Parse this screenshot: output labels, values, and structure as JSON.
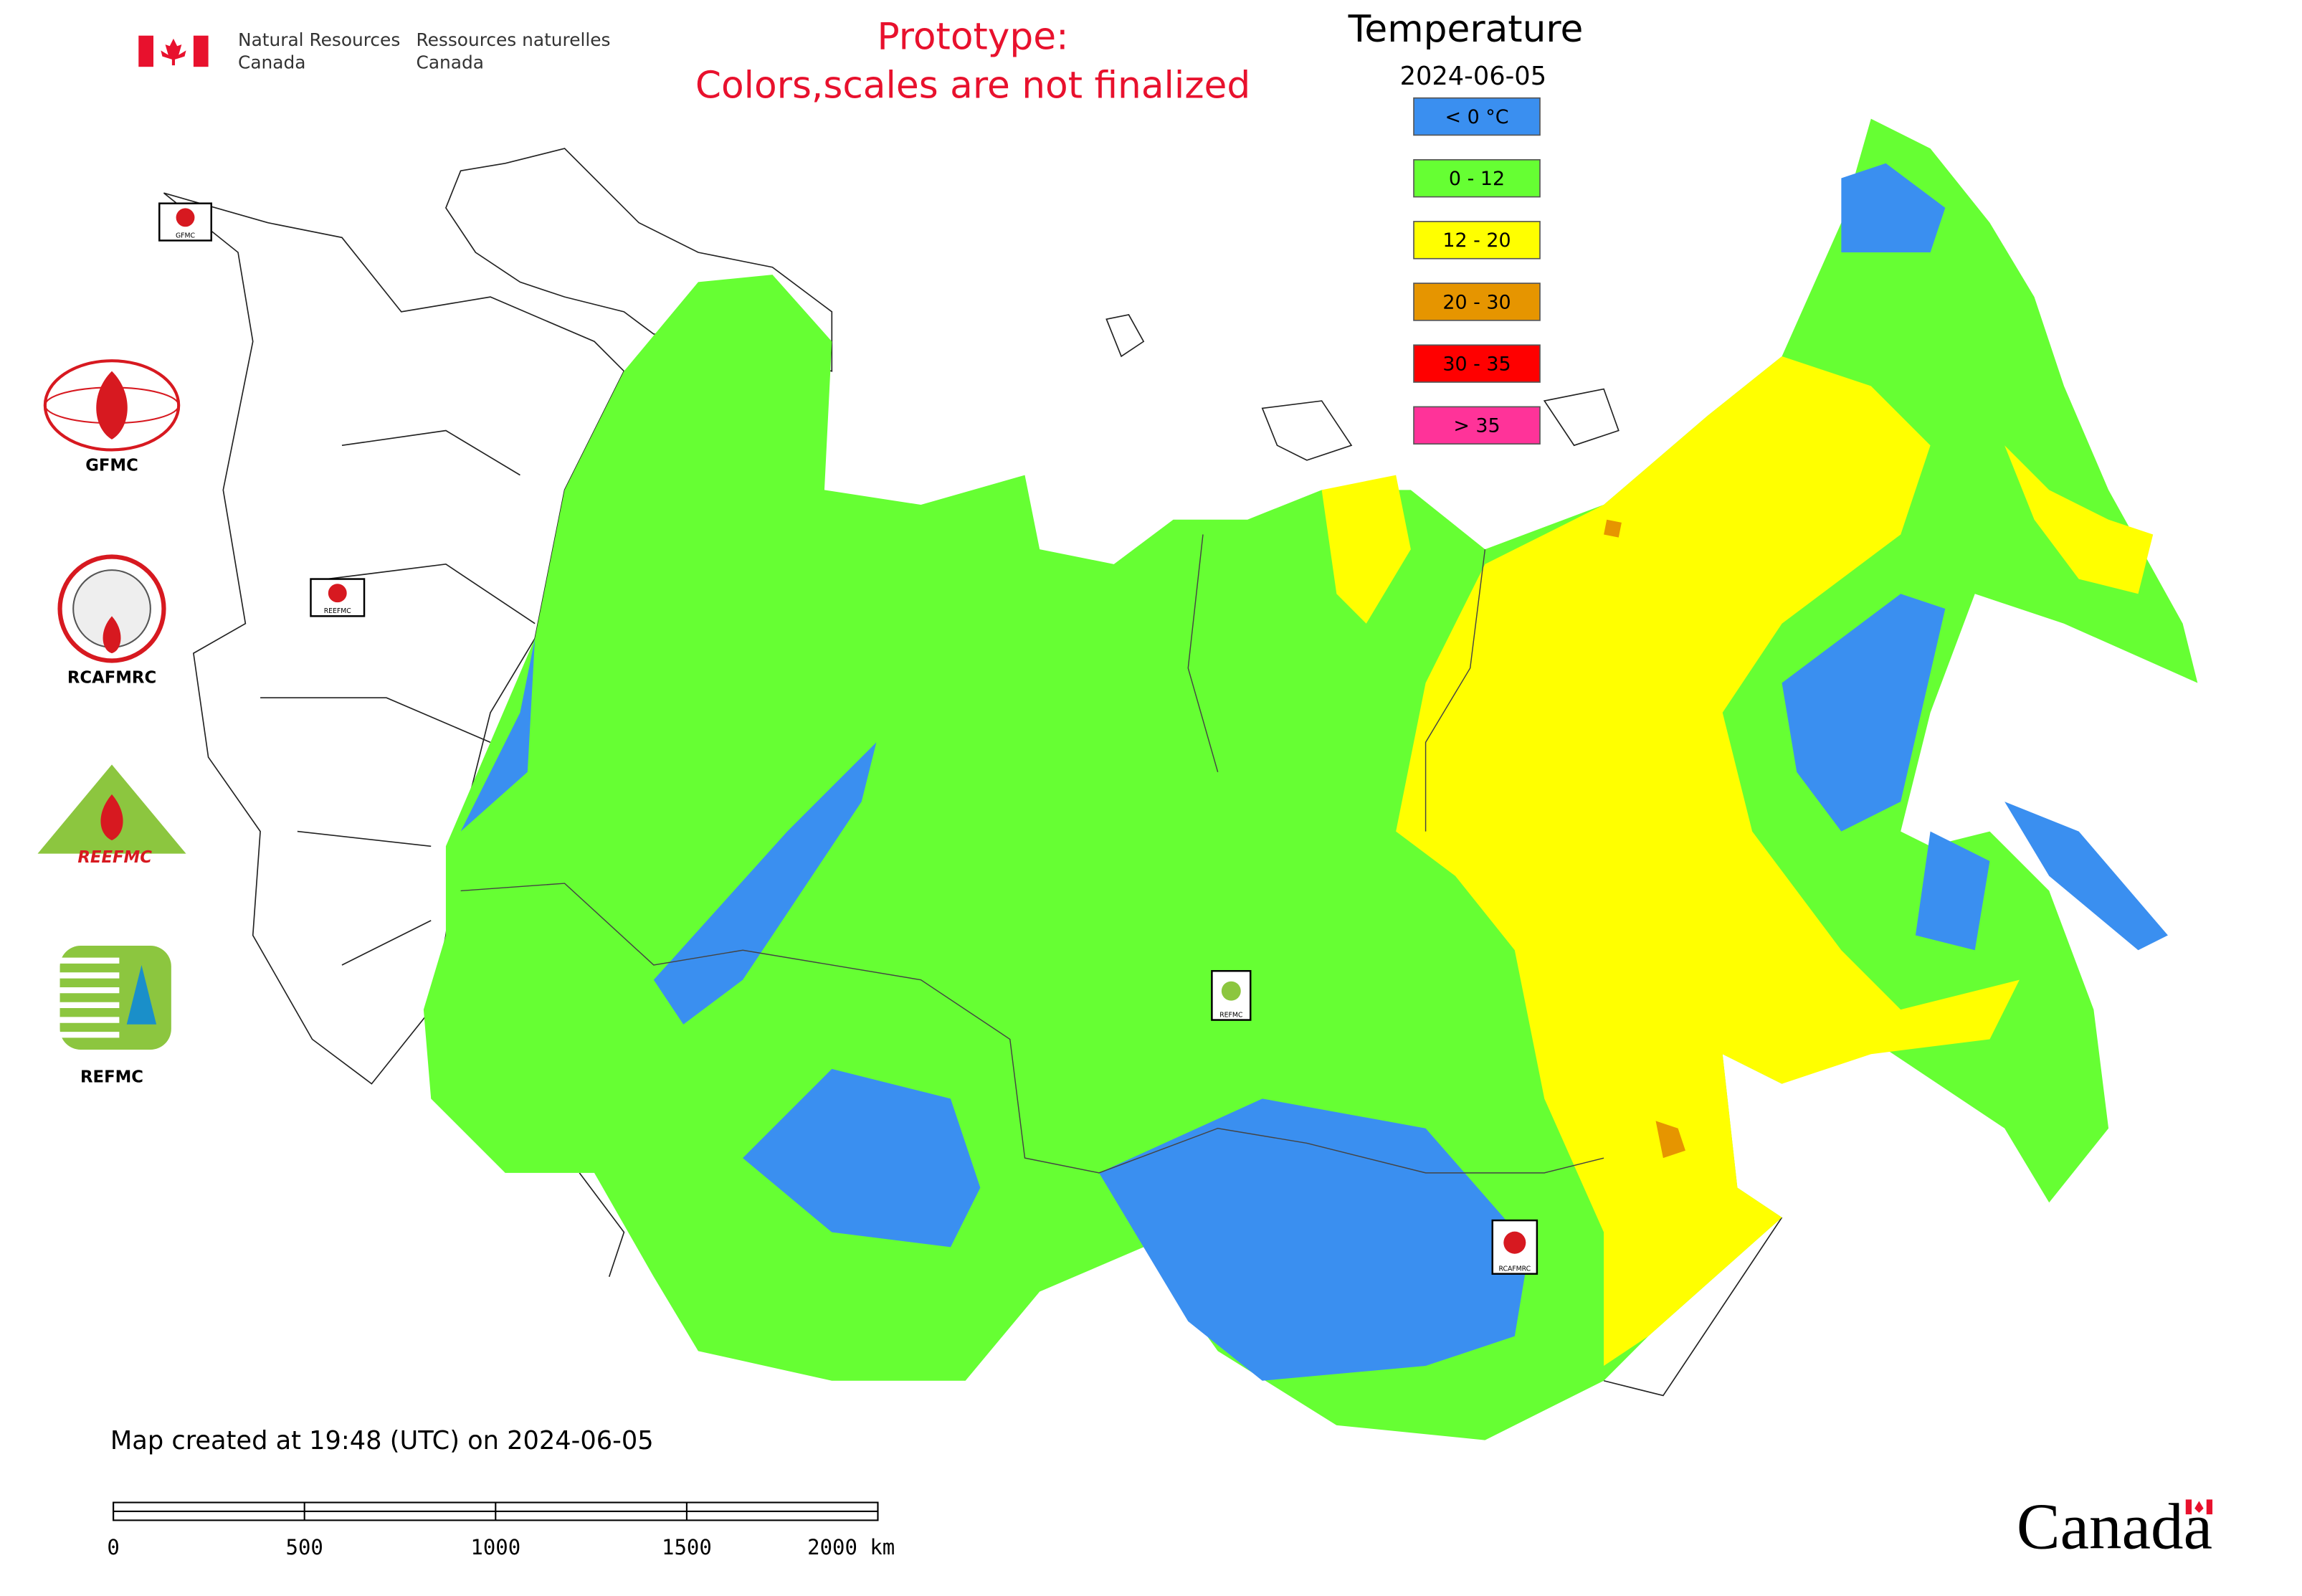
{
  "header": {
    "agency_en": [
      "Natural Resources",
      "Canada"
    ],
    "agency_fr": [
      "Ressources naturelles",
      "Canada"
    ]
  },
  "notice": [
    "Prototype:",
    "Colors,scales are not finalized"
  ],
  "legend": {
    "title": "Temperature",
    "date": "2024-06-05",
    "items": [
      {
        "label": "< 0 °C",
        "color": "#3a8ff0"
      },
      {
        "label": "0 - 12",
        "color": "#66ff33"
      },
      {
        "label": "12 - 20",
        "color": "#ffff00"
      },
      {
        "label": "20 - 30",
        "color": "#e69500"
      },
      {
        "label": "30 - 35",
        "color": "#ff0000"
      },
      {
        "label": "> 35",
        "color": "#ff3399"
      }
    ]
  },
  "logos": [
    {
      "label": "GFMC"
    },
    {
      "label": "RCAFMRC"
    },
    {
      "label": "REEFMC"
    },
    {
      "label": "REFMC"
    }
  ],
  "map_markers": [
    "GFMC",
    "REEFMC",
    "REFMC",
    "RCAFMRC"
  ],
  "footer": {
    "created": "Map created at 19:48 (UTC) on 2024-06-05",
    "scale_labels": [
      "0",
      "500",
      "1000",
      "1500",
      "2000 km"
    ],
    "wordmark": "Canada"
  }
}
